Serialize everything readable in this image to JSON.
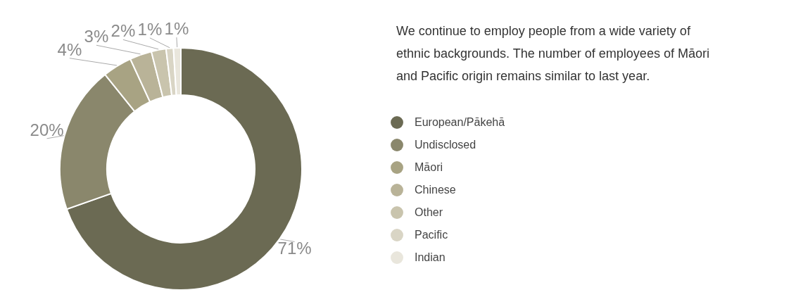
{
  "chart_data": {
    "type": "donut",
    "categories": [
      "European/Pākehā",
      "Undisclosed",
      "Māori",
      "Chinese",
      "Other",
      "Pacific",
      "Indian"
    ],
    "values": [
      71,
      20,
      4,
      3,
      2,
      1,
      1
    ],
    "value_labels": [
      "71%",
      "20%",
      "4%",
      "3%",
      "2%",
      "1%",
      "1%"
    ],
    "colors": [
      "#6b6a53",
      "#8a876c",
      "#a8a383",
      "#b9b398",
      "#c9c4ad",
      "#d9d5c5",
      "#e9e6dc"
    ],
    "legend": "right",
    "annotations": [
      "We continue to employ people from a wide variety of ethnic backgrounds. The number of employees of Māori and Pacific origin remains similar to last year."
    ]
  }
}
